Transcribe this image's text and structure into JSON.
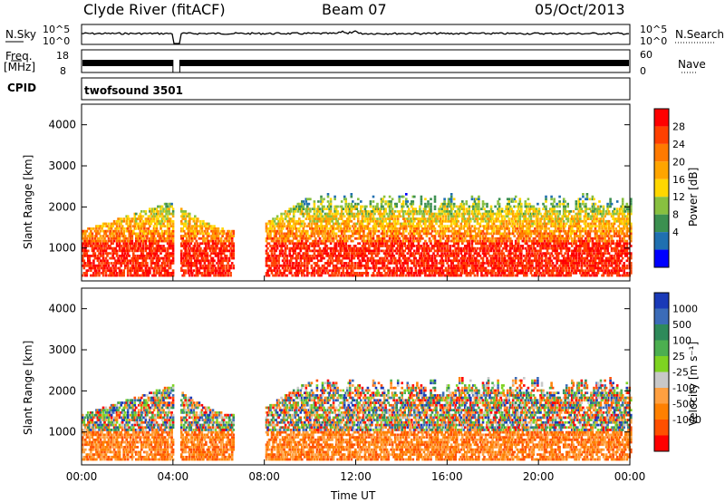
{
  "header": {
    "station": "Clyde River (fitACF)",
    "beam": "Beam 07",
    "date": "05/Oct/2013"
  },
  "summary_panels": {
    "nsky_label": "N.Sky",
    "nsky_ticks": [
      "10^5",
      "10^0"
    ],
    "nsearch_label": "N.Search",
    "nsearch_ticks": [
      "10^5",
      "10^0"
    ],
    "freq_label_line1": "Freq.",
    "freq_label_line2": "[MHz]",
    "freq_ticks": [
      "18",
      "8"
    ],
    "nave_label": "Nave",
    "nave_ticks": [
      "60",
      "0"
    ],
    "cpid_label": "CPID",
    "cpid_value": "twofsound 3501"
  },
  "chart_data": [
    {
      "type": "heatmap",
      "name": "power",
      "ylabel": "Slant Range [km]",
      "yticks": [
        "4000",
        "3000",
        "2000",
        "1000"
      ],
      "ytick_values": [
        4000,
        3000,
        2000,
        1000
      ],
      "ylim": [
        200,
        4500
      ],
      "xlim_hours": [
        0,
        24
      ],
      "colorbar_label": "Power [dB]",
      "colorbar_ticks": [
        "28",
        "24",
        "20",
        "16",
        "12",
        "8",
        "4"
      ],
      "colorbar_colors": [
        "#ff0000",
        "#ff4000",
        "#ff7a00",
        "#ffa500",
        "#ffd700",
        "#88c040",
        "#3c9050",
        "#2070b0",
        "#0000ff"
      ]
    },
    {
      "type": "heatmap",
      "name": "velocity",
      "ylabel": "Slant Range [km]",
      "yticks": [
        "4000",
        "3000",
        "2000",
        "1000"
      ],
      "ytick_values": [
        4000,
        3000,
        2000,
        1000
      ],
      "ylim": [
        200,
        4500
      ],
      "xlim_hours": [
        0,
        24
      ],
      "colorbar_label": "Velocity  [m s⁻¹]",
      "colorbar_ticks": [
        "1000",
        "500",
        "100",
        "25",
        "-25",
        "-100",
        "-500",
        "-1000"
      ],
      "colorbar_colors": [
        "#1a3ab8",
        "#3c6cb8",
        "#2e8a5a",
        "#4caf50",
        "#7ed321",
        "#c8c8c8",
        "#ffa040",
        "#ff8000",
        "#ff5000",
        "#ff0000"
      ]
    }
  ],
  "xaxis": {
    "label": "Time UT",
    "ticks": [
      "00:00",
      "04:00",
      "08:00",
      "12:00",
      "16:00",
      "20:00",
      "00:00"
    ]
  }
}
